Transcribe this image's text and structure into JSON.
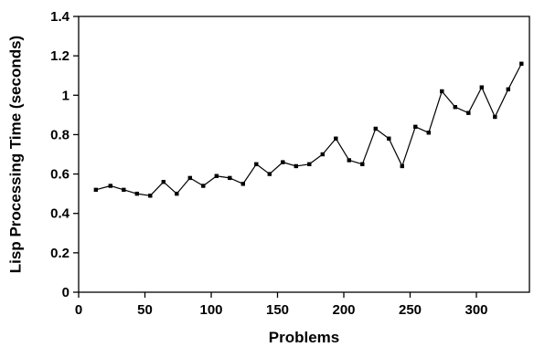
{
  "chart_data": {
    "type": "line",
    "title": "",
    "xlabel": "Problems",
    "ylabel": "Lisp Processing Time (seconds)",
    "xlim": [
      0,
      340
    ],
    "ylim": [
      0,
      1.4
    ],
    "xticks": [
      0,
      50,
      100,
      150,
      200,
      250,
      300
    ],
    "yticks": [
      0,
      0.2,
      0.4,
      0.6,
      0.8,
      1,
      1.2,
      1.4
    ],
    "xtick_labels": [
      "0",
      "50",
      "100",
      "150",
      "200",
      "250",
      "300"
    ],
    "ytick_labels": [
      "0",
      "0.2",
      "0.4",
      "0.6",
      "0.8",
      "1",
      "1.2",
      "1.4"
    ],
    "grid": false,
    "legend": false,
    "series": [
      {
        "color": "#000000",
        "marker": "square",
        "points": [
          [
            13,
            0.52
          ],
          [
            24,
            0.54
          ],
          [
            34,
            0.52
          ],
          [
            44,
            0.5
          ],
          [
            54,
            0.49
          ],
          [
            64,
            0.56
          ],
          [
            74,
            0.5
          ],
          [
            84,
            0.58
          ],
          [
            94,
            0.54
          ],
          [
            104,
            0.59
          ],
          [
            114,
            0.58
          ],
          [
            124,
            0.55
          ],
          [
            134,
            0.65
          ],
          [
            144,
            0.6
          ],
          [
            154,
            0.66
          ],
          [
            164,
            0.64
          ],
          [
            174,
            0.65
          ],
          [
            184,
            0.7
          ],
          [
            194,
            0.78
          ],
          [
            204,
            0.67
          ],
          [
            214,
            0.65
          ],
          [
            224,
            0.83
          ],
          [
            234,
            0.78
          ],
          [
            244,
            0.64
          ],
          [
            254,
            0.84
          ],
          [
            264,
            0.81
          ],
          [
            274,
            1.02
          ],
          [
            284,
            0.94
          ],
          [
            294,
            0.91
          ],
          [
            304,
            1.04
          ],
          [
            314,
            0.89
          ],
          [
            324,
            1.03
          ],
          [
            334,
            1.16
          ]
        ]
      }
    ]
  }
}
